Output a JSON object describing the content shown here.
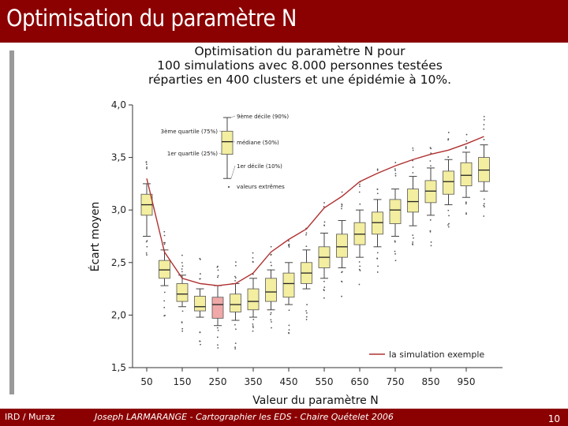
{
  "header": {
    "title": "Optimisation du paramètre N"
  },
  "footer": {
    "left": "IRD / Muraz",
    "center": "Joseph LARMARANGE - Cartographier les EDS - Chaire Quételet 2006",
    "page": "10"
  },
  "colors": {
    "header_bg": "#8b0000",
    "box_fill": "#f3eea0",
    "box_highlight": "#f0a8a8",
    "line": "#b03030"
  },
  "chart_data": {
    "type": "box",
    "title_lines": [
      "Optimisation du paramètre N pour",
      "100 simulations avec 8.000 personnes testées",
      "réparties en 400 clusters et une épidémie à 10%."
    ],
    "xlabel": "Valeur du paramètre N",
    "ylabel": "Écart moyen",
    "ylim": [
      1.5,
      4.0
    ],
    "yticks": [
      "4,0",
      "3,5",
      "3,0",
      "2,5",
      "2,0",
      "1,5"
    ],
    "ytick_values": [
      4.0,
      3.5,
      3.0,
      2.5,
      2.0,
      1.5
    ],
    "xtick_labels": [
      "50",
      "150",
      "250",
      "350",
      "450",
      "550",
      "650",
      "750",
      "850",
      "950"
    ],
    "x": [
      50,
      100,
      150,
      200,
      250,
      300,
      350,
      400,
      450,
      500,
      550,
      600,
      650,
      700,
      750,
      800,
      850,
      900,
      950,
      1000
    ],
    "boxes": [
      {
        "n": 50,
        "p10": 2.75,
        "q1": 2.95,
        "median": 3.05,
        "q3": 3.15,
        "p90": 3.25
      },
      {
        "n": 100,
        "p10": 2.28,
        "q1": 2.35,
        "median": 2.43,
        "q3": 2.52,
        "p90": 2.62
      },
      {
        "n": 150,
        "p10": 2.08,
        "q1": 2.13,
        "median": 2.2,
        "q3": 2.3,
        "p90": 2.38
      },
      {
        "n": 200,
        "p10": 1.98,
        "q1": 2.04,
        "median": 2.08,
        "q3": 2.18,
        "p90": 2.25
      },
      {
        "n": 250,
        "p10": 1.9,
        "q1": 1.97,
        "median": 2.1,
        "q3": 2.17,
        "p90": 2.28
      },
      {
        "n": 300,
        "p10": 1.95,
        "q1": 2.03,
        "median": 2.1,
        "q3": 2.2,
        "p90": 2.3
      },
      {
        "n": 350,
        "p10": 1.98,
        "q1": 2.05,
        "median": 2.13,
        "q3": 2.25,
        "p90": 2.35
      },
      {
        "n": 400,
        "p10": 2.05,
        "q1": 2.13,
        "median": 2.22,
        "q3": 2.35,
        "p90": 2.43
      },
      {
        "n": 450,
        "p10": 2.1,
        "q1": 2.17,
        "median": 2.3,
        "q3": 2.4,
        "p90": 2.5
      },
      {
        "n": 500,
        "p10": 2.25,
        "q1": 2.3,
        "median": 2.4,
        "q3": 2.5,
        "p90": 2.62
      },
      {
        "n": 550,
        "p10": 2.35,
        "q1": 2.45,
        "median": 2.55,
        "q3": 2.65,
        "p90": 2.78
      },
      {
        "n": 600,
        "p10": 2.45,
        "q1": 2.55,
        "median": 2.65,
        "q3": 2.77,
        "p90": 2.9
      },
      {
        "n": 650,
        "p10": 2.55,
        "q1": 2.67,
        "median": 2.77,
        "q3": 2.88,
        "p90": 3.0
      },
      {
        "n": 700,
        "p10": 2.65,
        "q1": 2.77,
        "median": 2.88,
        "q3": 2.98,
        "p90": 3.1
      },
      {
        "n": 750,
        "p10": 2.75,
        "q1": 2.87,
        "median": 3.0,
        "q3": 3.1,
        "p90": 3.2
      },
      {
        "n": 800,
        "p10": 2.85,
        "q1": 2.98,
        "median": 3.08,
        "q3": 3.2,
        "p90": 3.32
      },
      {
        "n": 850,
        "p10": 2.95,
        "q1": 3.07,
        "median": 3.18,
        "q3": 3.28,
        "p90": 3.4
      },
      {
        "n": 900,
        "p10": 3.05,
        "q1": 3.15,
        "median": 3.27,
        "q3": 3.37,
        "p90": 3.48
      },
      {
        "n": 950,
        "p10": 3.12,
        "q1": 3.23,
        "median": 3.33,
        "q3": 3.45,
        "p90": 3.55
      },
      {
        "n": 1000,
        "p10": 3.18,
        "q1": 3.27,
        "median": 3.38,
        "q3": 3.5,
        "p90": 3.62
      }
    ],
    "highlight_n": 250,
    "example_series": {
      "name": "la simulation exemple",
      "values": [
        3.3,
        2.6,
        2.35,
        2.3,
        2.28,
        2.3,
        2.4,
        2.6,
        2.72,
        2.82,
        3.02,
        3.13,
        3.27,
        3.35,
        3.42,
        3.48,
        3.53,
        3.57,
        3.63,
        3.7
      ]
    },
    "legend_box": {
      "values": {
        "p10": 3.3,
        "q1": 3.53,
        "median": 3.65,
        "q3": 3.75,
        "p90": 3.88
      },
      "labels": {
        "p90": "9ème décile (90%)",
        "q3": "3ème quartile (75%)",
        "median": "médiane (50%)",
        "q1": "1er quartile (25%)",
        "p10": "1er décile (10%)",
        "extremes": "valeurs extrêmes"
      }
    }
  }
}
